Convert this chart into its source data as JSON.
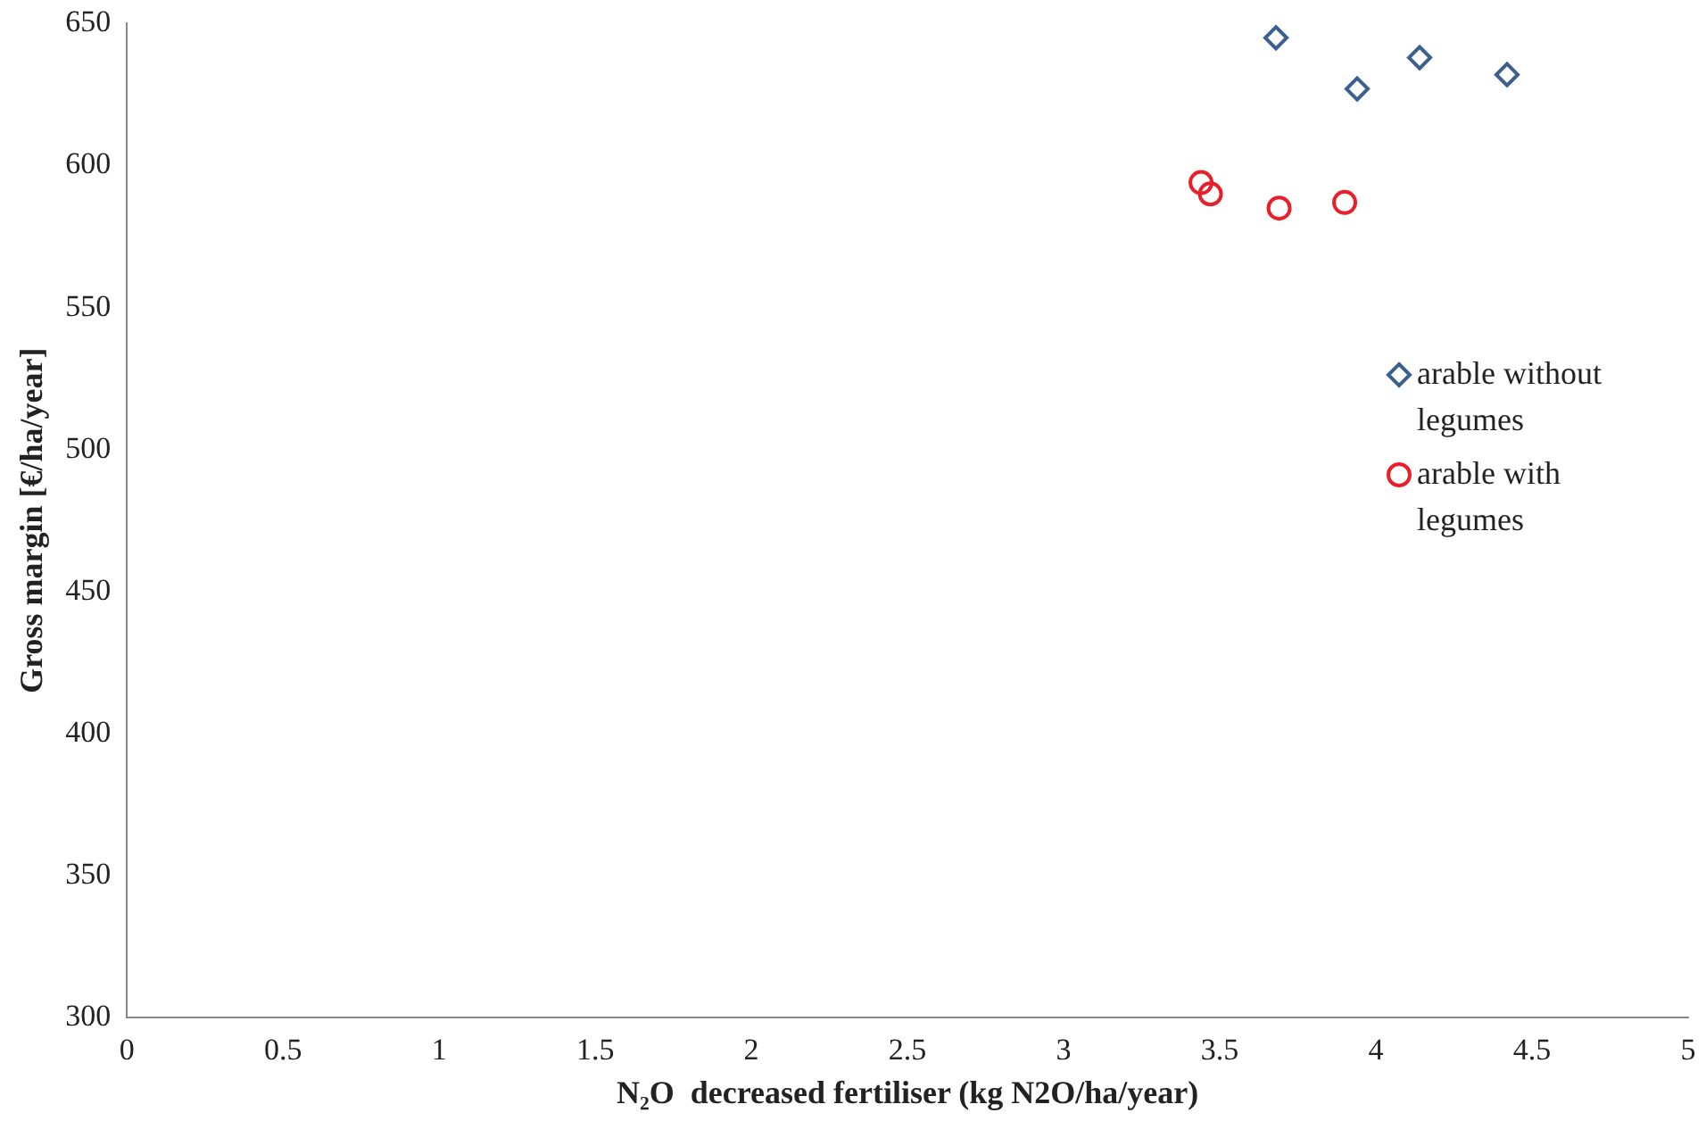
{
  "chart_data": {
    "type": "scatter",
    "xlabel": "N₂O  decreased fertiliser (kg N2O/ha/year)",
    "ylabel": "Gross margin [€/ha/year]",
    "xlim": [
      0,
      5
    ],
    "xticks": [
      0,
      0.5,
      1,
      1.5,
      2,
      2.5,
      3,
      3.5,
      4,
      4.5,
      5
    ],
    "ylim": [
      300,
      650
    ],
    "yticks": [
      300,
      350,
      400,
      450,
      500,
      550,
      600,
      650
    ],
    "grid": false,
    "legend": "right",
    "series": [
      {
        "name": "arable without legumes",
        "color": "#3b5f8e",
        "marker": "diamond",
        "x": [
          3.68,
          3.94,
          4.14,
          4.42
        ],
        "values": [
          645,
          627,
          638,
          632
        ]
      },
      {
        "name": "arable with legumes",
        "color": "#e8202a",
        "marker": "circle",
        "x": [
          3.44,
          3.47,
          3.69,
          3.9
        ],
        "values": [
          594,
          590,
          585,
          587
        ]
      }
    ]
  }
}
